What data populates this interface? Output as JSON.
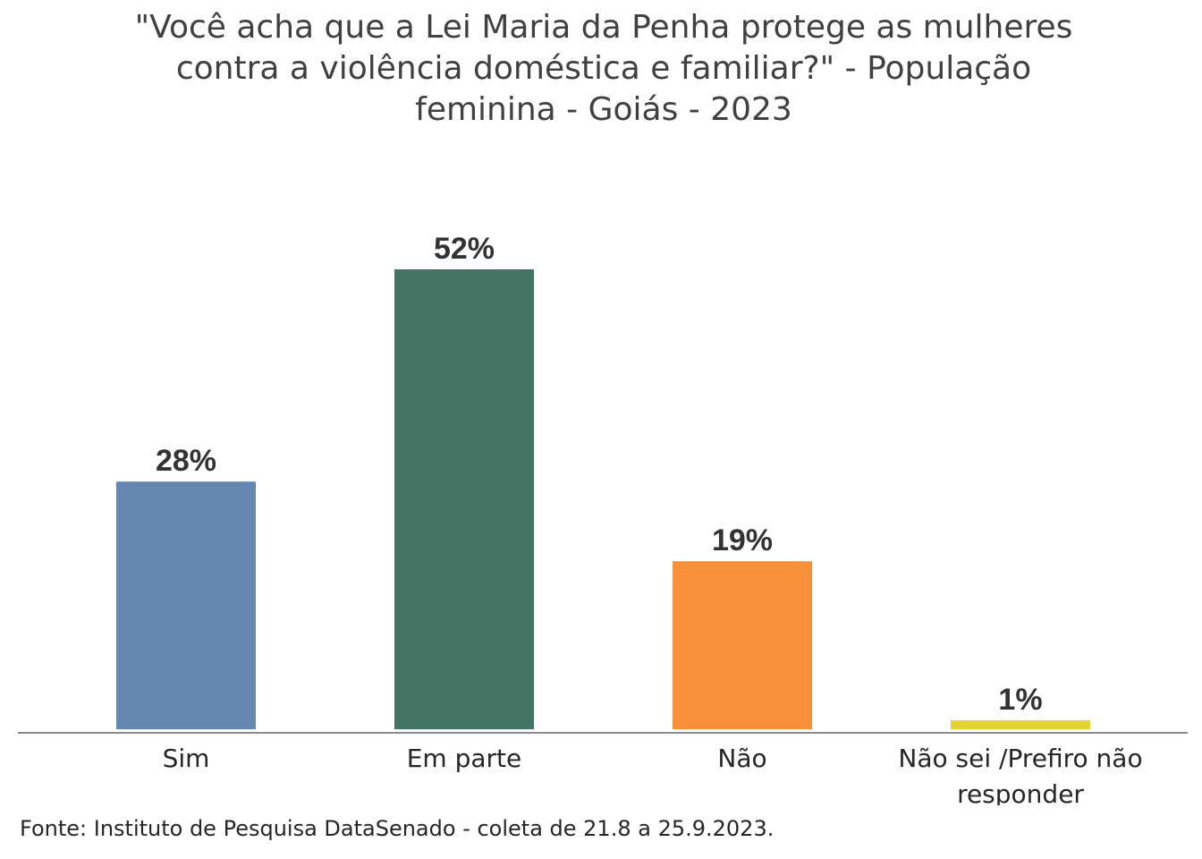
{
  "chart_data": {
    "type": "bar",
    "title_lines": [
      "\"Você acha que a Lei Maria da Penha protege as mulheres",
      "contra a violência doméstica e familiar?\" - População",
      "feminina - Goiás - 2023"
    ],
    "categories": [
      [
        "Sim"
      ],
      [
        "Em parte"
      ],
      [
        "Não"
      ],
      [
        "Não sei /Prefiro não",
        "responder"
      ]
    ],
    "values": [
      28,
      52,
      19,
      1
    ],
    "value_labels": [
      "28%",
      "52%",
      "19%",
      "1%"
    ],
    "colors": [
      "#6487B0",
      "#447463",
      "#F8903B",
      "#E2D331"
    ],
    "unit": "%",
    "ylim": [
      0,
      52
    ],
    "grid": false,
    "legend": "none",
    "source": "Fonte: Instituto de Pesquisa DataSenado - coleta de 21.8 a 25.9.2023."
  }
}
